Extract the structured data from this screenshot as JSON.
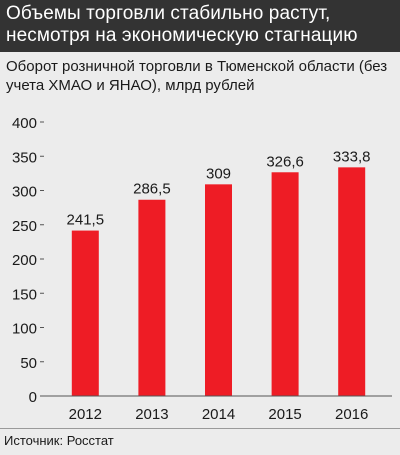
{
  "header": {
    "title": "Объемы торговли стабильно растут, несмотря на экономическую стагнацию",
    "subtitle": "Оборот розничной торговли в Тюменской области (без учета ХМАО и ЯНАО), млрд рублей"
  },
  "source": "Источник: Росстат",
  "colors": {
    "bar": "#ee1c25",
    "title_bg": "#333333",
    "background": "#ececec"
  },
  "chart_data": {
    "type": "bar",
    "title": "Оборот розничной торговли в Тюменской области (без учета ХМАО и ЯНАО), млрд рублей",
    "categories": [
      "2012",
      "2013",
      "2014",
      "2015",
      "2016"
    ],
    "values": [
      241.5,
      286.5,
      309,
      326.6,
      333.8
    ],
    "value_labels": [
      "241,5",
      "286,5",
      "309",
      "326,6",
      "333,8"
    ],
    "ylim": [
      0,
      400
    ],
    "yticks": [
      0,
      50,
      100,
      150,
      200,
      250,
      300,
      350,
      400
    ],
    "grid": false,
    "legend": "none"
  }
}
